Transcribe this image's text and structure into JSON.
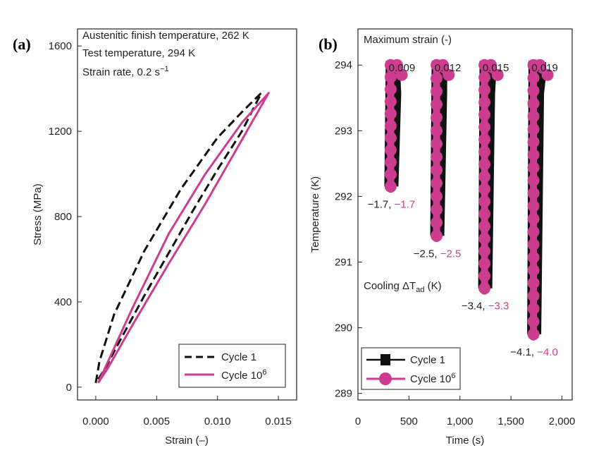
{
  "chart_data": [
    {
      "panel_label": "(a)",
      "type": "line",
      "xlabel": "Strain (–)",
      "ylabel": "Stress (MPa)",
      "xlim": [
        -0.0015,
        0.0165
      ],
      "ylim": [
        -60,
        1680
      ],
      "xticks": [
        0.0,
        0.005,
        0.01,
        0.015
      ],
      "xtick_labels": [
        "0.000",
        "0.005",
        "0.010",
        "0.015"
      ],
      "yticks": [
        0,
        400,
        800,
        1200,
        1600
      ],
      "ytick_labels": [
        "0",
        "400",
        "800",
        "1200",
        "1600"
      ],
      "annotations": [
        "Austenitic finish temperature, 262 K",
        "Test temperature, 294 K",
        "Strain rate, 0.2 s"
      ],
      "strain_rate_exponent": "−1",
      "legend": {
        "position": "bottom-right",
        "entries": [
          "Cycle 1",
          "Cycle 10"
        ],
        "superscript": "6"
      },
      "series": [
        {
          "name": "Cycle 1",
          "color": "#111111",
          "dashed": true,
          "loading": [
            [
              0.0,
              20
            ],
            [
              0.0003,
              120
            ],
            [
              0.0015,
              340
            ],
            [
              0.004,
              640
            ],
            [
              0.007,
              930
            ],
            [
              0.01,
              1170
            ],
            [
              0.012,
              1290
            ],
            [
              0.0136,
              1380
            ]
          ],
          "unloading": [
            [
              0.0136,
              1380
            ],
            [
              0.012,
              1200
            ],
            [
              0.01,
              1020
            ],
            [
              0.008,
              830
            ],
            [
              0.006,
              630
            ],
            [
              0.004,
              430
            ],
            [
              0.002,
              220
            ],
            [
              0.0008,
              90
            ],
            [
              0.0,
              20
            ]
          ]
        },
        {
          "name": "Cycle 10^6",
          "color": "#cc3d8f",
          "dashed": false,
          "loading": [
            [
              0.0002,
              20
            ],
            [
              0.001,
              120
            ],
            [
              0.003,
              370
            ],
            [
              0.006,
              720
            ],
            [
              0.009,
              1000
            ],
            [
              0.012,
              1240
            ],
            [
              0.0142,
              1380
            ]
          ],
          "unloading": [
            [
              0.0142,
              1380
            ],
            [
              0.012,
              1160
            ],
            [
              0.009,
              860
            ],
            [
              0.006,
              580
            ],
            [
              0.003,
              290
            ],
            [
              0.001,
              90
            ],
            [
              0.0002,
              20
            ]
          ]
        }
      ]
    },
    {
      "panel_label": "(b)",
      "type": "scatter",
      "xlabel": "Time (s)",
      "ylabel": "Temperature (K)",
      "xlim": [
        0,
        2100
      ],
      "ylim": [
        288.9,
        294.55
      ],
      "xticks": [
        0,
        500,
        1000,
        1500,
        2000
      ],
      "xtick_labels": [
        "0",
        "500",
        "1,000",
        "1,500",
        "2,000"
      ],
      "yticks": [
        289,
        290,
        291,
        292,
        293,
        294
      ],
      "ytick_labels": [
        "289",
        "290",
        "291",
        "292",
        "293",
        "294"
      ],
      "max_strain_title": "Maximum strain (-)",
      "max_strains": [
        "0.009",
        "0.012",
        "0.015",
        "0.019"
      ],
      "cooling_label": "Cooling ΔT",
      "cooling_sub": "ad",
      "cooling_unit": " (K)",
      "legend": {
        "position": "bottom-left",
        "entries": [
          "Cycle 1",
          "Cycle 10"
        ],
        "superscript": "6"
      },
      "cycles": [
        {
          "max_strain": "0.009",
          "t_start": 300,
          "t_end": 360,
          "dT_cycle1": "−1.7",
          "dT_cycle1e6": "−1.7",
          "t_min": 292.15
        },
        {
          "max_strain": "0.012",
          "t_start": 750,
          "t_end": 820,
          "dT_cycle1": "−2.5",
          "dT_cycle1e6": "−2.5",
          "t_min": 291.4
        },
        {
          "max_strain": "0.015",
          "t_start": 1220,
          "t_end": 1300,
          "dT_cycle1": "−3.4",
          "dT_cycle1e6": "−3.3",
          "t_min": 290.6
        },
        {
          "max_strain": "0.019",
          "t_start": 1700,
          "t_end": 1790,
          "dT_cycle1": "−4.1",
          "dT_cycle1e6": "−4.0",
          "t_min": 289.9
        }
      ],
      "series": [
        {
          "name": "Cycle 1",
          "color": "#111111",
          "marker": "square"
        },
        {
          "name": "Cycle 10^6",
          "color": "#cc3d8f",
          "marker": "circle"
        }
      ]
    }
  ]
}
